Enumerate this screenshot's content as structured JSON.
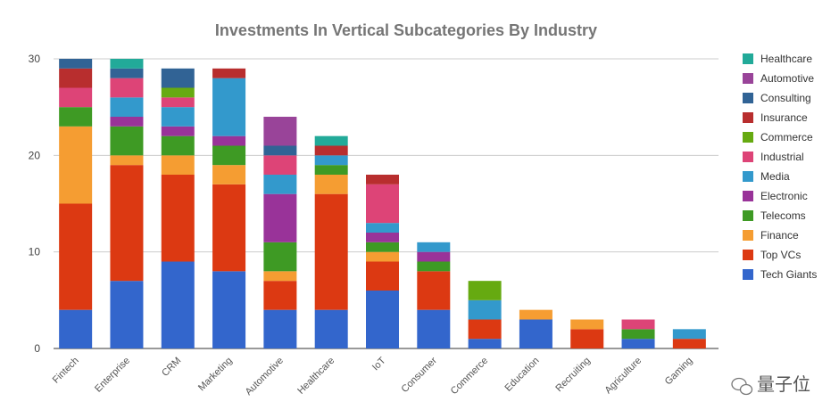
{
  "chart_data": {
    "type": "bar",
    "stacked": true,
    "title": "Investments In Vertical Subcategories By Industry",
    "xlabel": "",
    "ylabel": "",
    "ylim": [
      0,
      30
    ],
    "yticks": [
      0,
      10,
      20,
      30
    ],
    "grid": true,
    "legend_position": "right",
    "categories": [
      "Fintech",
      "Enterprise",
      "CRM",
      "Marketing",
      "Automotive",
      "Healthcare",
      "IoT",
      "Consumer",
      "Commerce",
      "Education",
      "Recruiting",
      "Agriculture",
      "Gaming"
    ],
    "series": [
      {
        "name": "Tech Giants",
        "color": "#3366cc",
        "values": [
          4,
          7,
          9,
          8,
          4,
          4,
          6,
          4,
          1,
          3,
          0,
          1,
          0
        ]
      },
      {
        "name": "Top VCs",
        "color": "#dc3912",
        "values": [
          11,
          12,
          9,
          9,
          3,
          12,
          3,
          4,
          2,
          0,
          2,
          0,
          1
        ]
      },
      {
        "name": "Finance",
        "color": "#f59d32",
        "values": [
          8,
          1,
          2,
          2,
          1,
          2,
          1,
          0,
          0,
          1,
          1,
          0,
          0
        ]
      },
      {
        "name": "Telecoms",
        "color": "#3e9a24",
        "values": [
          2,
          3,
          2,
          2,
          3,
          1,
          1,
          1,
          0,
          0,
          0,
          1,
          0
        ]
      },
      {
        "name": "Electronic",
        "color": "#993399",
        "values": [
          0,
          1,
          1,
          1,
          5,
          0,
          1,
          1,
          0,
          0,
          0,
          0,
          0
        ]
      },
      {
        "name": "Media",
        "color": "#3399cc",
        "values": [
          0,
          2,
          2,
          6,
          2,
          1,
          1,
          1,
          2,
          0,
          0,
          0,
          1
        ]
      },
      {
        "name": "Industrial",
        "color": "#dd4477",
        "values": [
          2,
          2,
          1,
          0,
          2,
          0,
          4,
          0,
          0,
          0,
          0,
          1,
          0
        ]
      },
      {
        "name": "Commerce",
        "color": "#66aa11",
        "values": [
          0,
          0,
          1,
          0,
          0,
          0,
          0,
          0,
          2,
          0,
          0,
          0,
          0
        ]
      },
      {
        "name": "Insurance",
        "color": "#b82e2e",
        "values": [
          2,
          0,
          0,
          1,
          0,
          1,
          1,
          0,
          0,
          0,
          0,
          0,
          0
        ]
      },
      {
        "name": "Consulting",
        "color": "#316395",
        "values": [
          1,
          1,
          2,
          0,
          1,
          0,
          0,
          0,
          0,
          0,
          0,
          0,
          0
        ]
      },
      {
        "name": "Automotive",
        "color": "#994499",
        "values": [
          0,
          0,
          0,
          0,
          3,
          0,
          0,
          0,
          0,
          0,
          0,
          0,
          0
        ]
      },
      {
        "name": "Healthcare",
        "color": "#22aa99",
        "values": [
          0,
          1,
          0,
          0,
          0,
          1,
          0,
          0,
          0,
          0,
          0,
          0,
          0
        ]
      }
    ]
  },
  "watermark": "量子位"
}
